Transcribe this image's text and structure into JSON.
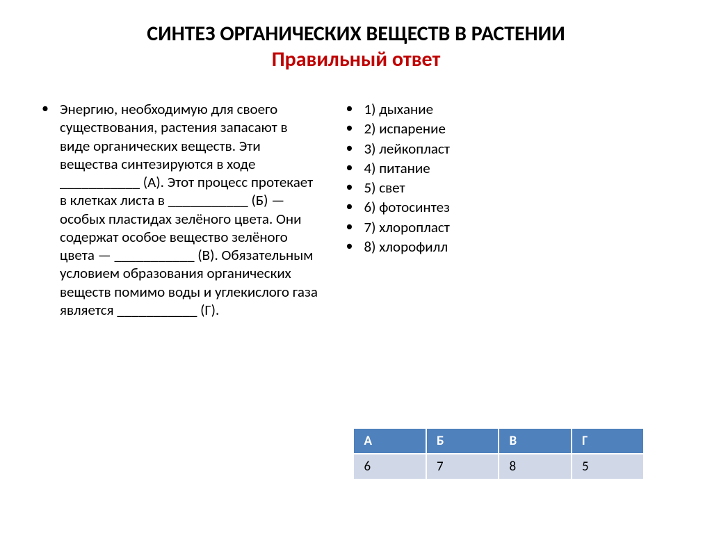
{
  "title": {
    "line1": "СИНТЕЗ ОРГАНИЧЕСКИХ ВЕЩЕСТВ В РАСТЕНИИ",
    "line2": "Правильный ответ",
    "line1_color": "#000000",
    "line2_color": "#c00000",
    "fontsize": 30,
    "fontweight": 700
  },
  "left_column": {
    "paragraph": "Энергию, необходимую для своего существования, растения запасают в виде органических веществ. Эти вещества синтезируются в ходе ___________ (А). Этот процесс протекает в клетках листа в ___________ (Б) — особых пластидах зелёного цвета. Они содержат особое вещество зелёного цвета — ___________ (В). Обязательным условием образования органических веществ помимо воды и углекислого газа является ___________ (Г).",
    "fontsize": 21
  },
  "right_column": {
    "items": [
      "1) дыхание",
      "2) испарение",
      "3) лейкопласт",
      "4) питание",
      "5) свет",
      "6) фотосинтез",
      "7) хлоропласт",
      "8) хлорофилл"
    ],
    "fontsize": 21
  },
  "answer_table": {
    "headers": [
      "А",
      "Б",
      "В",
      "Г"
    ],
    "row": [
      "6",
      "7",
      "8",
      "5"
    ],
    "header_bg": "#4f81bd",
    "header_color": "#ffffff",
    "cell_bg": "#d0d8e8",
    "cell_color": "#000000",
    "border_color": "#ffffff",
    "fontsize": 19
  },
  "bullet_char": "•",
  "background_color": "#ffffff"
}
